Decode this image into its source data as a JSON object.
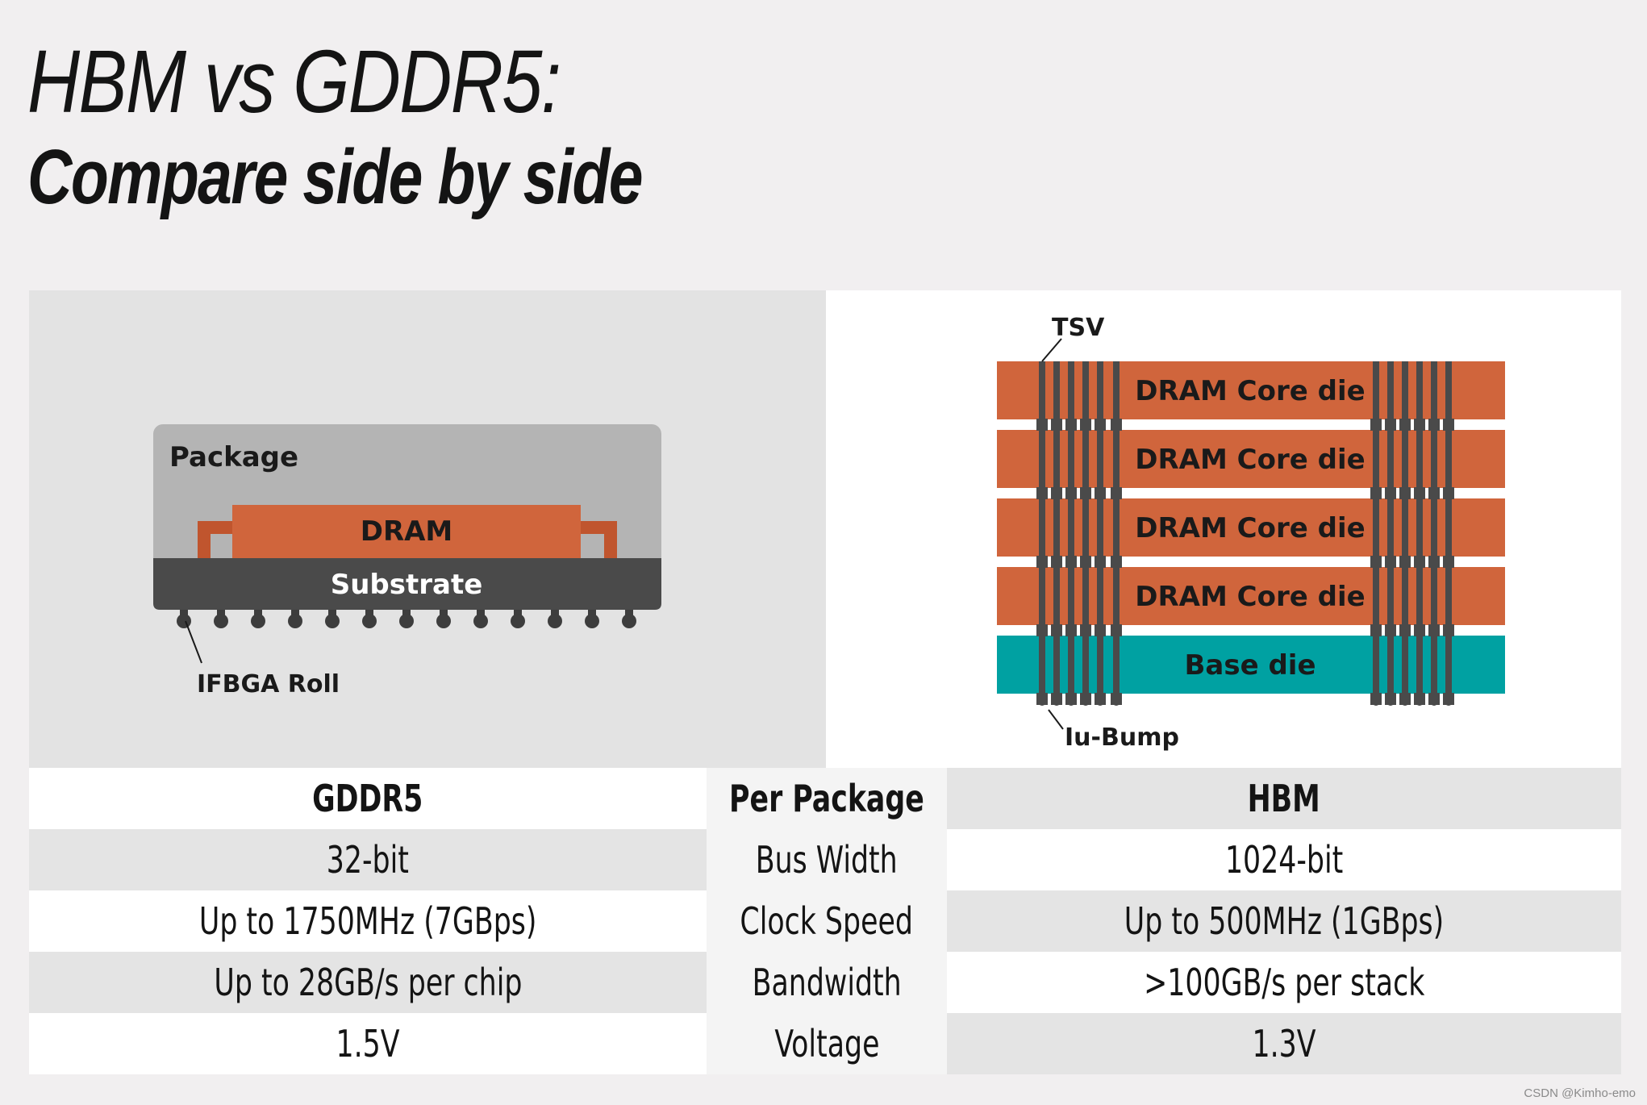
{
  "title": {
    "line1": "HBM vs GDDR5:",
    "line2": "Compare side by side"
  },
  "gddr5_diagram": {
    "package_label": "Package",
    "dram_label": "DRAM",
    "substrate_label": "Substrate",
    "ball_label": "IFBGA Roll"
  },
  "hbm_diagram": {
    "tsv_label": "TSV",
    "core_dies": [
      "DRAM Core die",
      "DRAM Core die",
      "DRAM Core die",
      "DRAM Core die"
    ],
    "base_die_label": "Base die",
    "bump_label": "Iu-Bump"
  },
  "colors": {
    "dram_orange": "#d0653c",
    "base_die_teal": "#00a1a2",
    "substrate_dark": "#4a4a4a",
    "package_gray": "#b4b4b4"
  },
  "table": {
    "headers": [
      "GDDR5",
      "Per Package",
      "HBM"
    ],
    "rows": [
      [
        "32-bit",
        "Bus Width",
        "1024-bit"
      ],
      [
        "Up to 1750MHz (7GBps)",
        "Clock Speed",
        "Up to 500MHz (1GBps)"
      ],
      [
        "Up to 28GB/s per chip",
        "Bandwidth",
        ">100GB/s per stack"
      ],
      [
        "1.5V",
        "Voltage",
        "1.3V"
      ]
    ]
  },
  "watermark": "CSDN @Kimho-emo"
}
